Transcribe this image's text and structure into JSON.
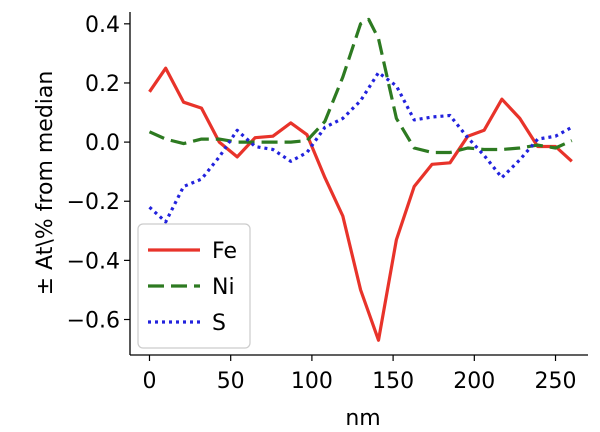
{
  "chart_data": {
    "type": "line",
    "xlabel": "nm",
    "ylabel": "± At\\% from median",
    "xlim": [
      -12,
      270
    ],
    "ylim": [
      -0.72,
      0.44
    ],
    "xticks": [
      0,
      50,
      100,
      150,
      200,
      250
    ],
    "xtick_labels": [
      "0",
      "50",
      "100",
      "150",
      "200",
      "250"
    ],
    "yticks": [
      0.4,
      0.2,
      0.0,
      -0.2,
      -0.4,
      -0.6
    ],
    "ytick_labels": [
      "0.4",
      "0.2",
      "0.0",
      "−0.2",
      "−0.4",
      "−0.6"
    ],
    "grid": false,
    "legend_position": "lower-left",
    "series": [
      {
        "name": "Fe",
        "color": "#e8332a",
        "style": "solid",
        "x": [
          0,
          10,
          21,
          32,
          43,
          54,
          65,
          76,
          87,
          97,
          108,
          119,
          130,
          141,
          152,
          163,
          174,
          185,
          196,
          206,
          217,
          228,
          239,
          250,
          260
        ],
        "y": [
          0.17,
          0.25,
          0.135,
          0.115,
          0.0,
          -0.05,
          0.015,
          0.02,
          0.065,
          0.025,
          -0.12,
          -0.25,
          -0.5,
          -0.67,
          -0.33,
          -0.15,
          -0.075,
          -0.07,
          0.02,
          0.04,
          0.145,
          0.08,
          -0.015,
          -0.015,
          -0.065
        ]
      },
      {
        "name": "Ni",
        "color": "#2d7a21",
        "style": "dashed",
        "x": [
          0,
          10,
          21,
          32,
          43,
          54,
          65,
          76,
          87,
          97,
          108,
          119,
          130,
          135,
          141,
          152,
          163,
          174,
          185,
          196,
          206,
          217,
          228,
          239,
          250,
          260
        ],
        "y": [
          0.035,
          0.01,
          -0.005,
          0.01,
          0.01,
          0.0,
          0.0,
          0.0,
          0.0,
          0.005,
          0.07,
          0.22,
          0.4,
          0.415,
          0.35,
          0.08,
          -0.02,
          -0.035,
          -0.035,
          -0.02,
          -0.025,
          -0.025,
          -0.02,
          -0.01,
          -0.02,
          0.005
        ]
      },
      {
        "name": "S",
        "color": "#2222dd",
        "style": "dotted",
        "x": [
          0,
          10,
          21,
          32,
          43,
          54,
          65,
          76,
          87,
          97,
          108,
          119,
          130,
          141,
          152,
          163,
          174,
          185,
          196,
          206,
          217,
          228,
          239,
          250,
          260
        ],
        "y": [
          -0.22,
          -0.27,
          -0.15,
          -0.125,
          -0.05,
          0.04,
          -0.015,
          -0.025,
          -0.065,
          -0.035,
          0.05,
          0.08,
          0.14,
          0.235,
          0.19,
          0.075,
          0.085,
          0.09,
          0.015,
          -0.045,
          -0.12,
          -0.06,
          0.01,
          0.02,
          0.05
        ]
      }
    ]
  }
}
